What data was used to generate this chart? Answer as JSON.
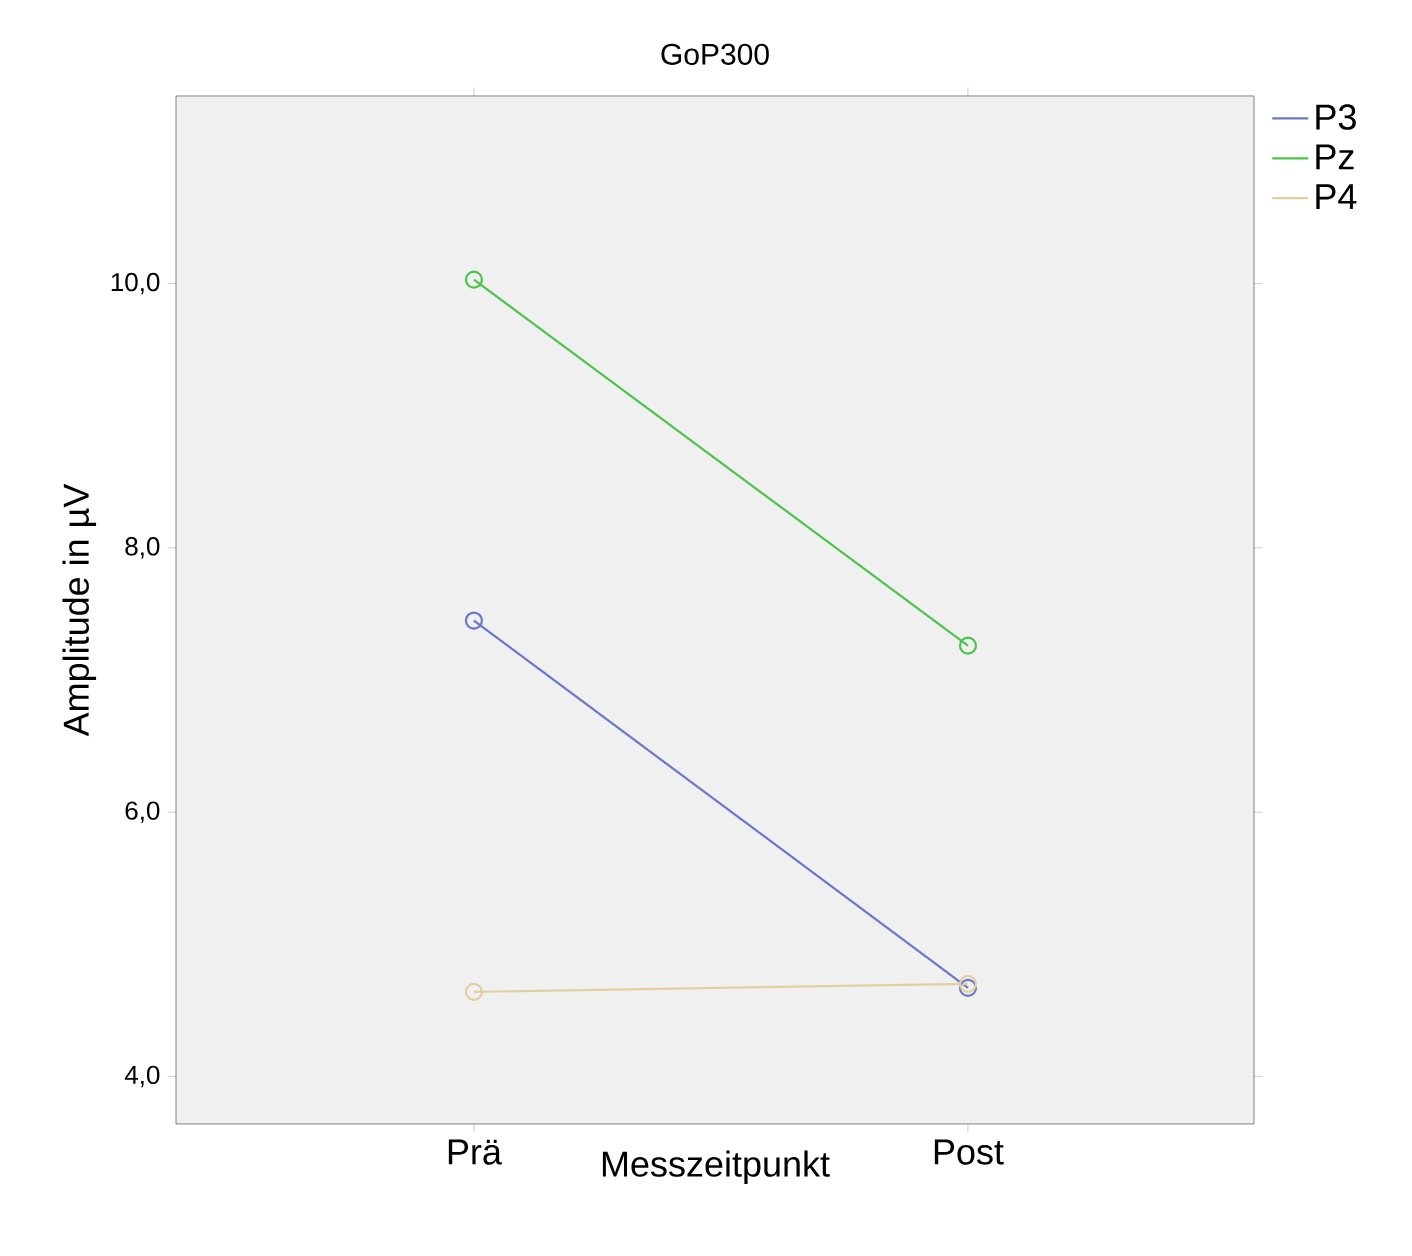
{
  "chart_data": {
    "type": "line",
    "title": "GoP300",
    "xlabel": "Messzeitpunkt",
    "ylabel": "Amplitude in µV",
    "categories": [
      "Prä",
      "Post"
    ],
    "series": [
      {
        "name": "P3",
        "color": "#6a78c8",
        "values": [
          7.45,
          4.67
        ]
      },
      {
        "name": "Pz",
        "color": "#4cc44c",
        "values": [
          10.03,
          7.26
        ]
      },
      {
        "name": "P4",
        "color": "#e2cfa0",
        "values": [
          4.64,
          4.7
        ]
      }
    ],
    "ylim": [
      3.64,
      11.42
    ],
    "yticks": [
      {
        "value": 4,
        "label": "4,0"
      },
      {
        "value": 6,
        "label": "6,0"
      },
      {
        "value": 8,
        "label": "8,0"
      },
      {
        "value": 10,
        "label": "10,0"
      }
    ],
    "grid": false,
    "legend": "top right",
    "marker": "circle",
    "line_style": "solid"
  }
}
